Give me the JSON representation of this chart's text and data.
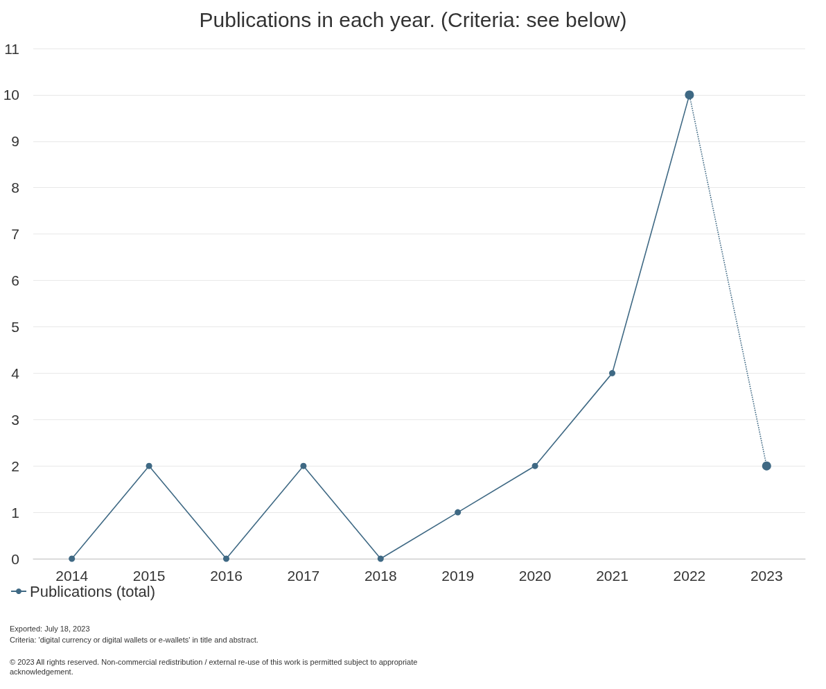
{
  "chart_data": {
    "type": "line",
    "title": "Publications in each year. (Criteria: see below)",
    "categories": [
      "2014",
      "2015",
      "2016",
      "2017",
      "2018",
      "2019",
      "2020",
      "2021",
      "2022",
      "2023"
    ],
    "series": [
      {
        "name": "Publications (total)",
        "color": "#3f6984",
        "values": [
          0,
          2,
          0,
          2,
          0,
          1,
          2,
          4,
          10,
          null
        ],
        "line_style": "solid"
      },
      {
        "color": "#3f6984",
        "values": [
          null,
          null,
          null,
          null,
          null,
          null,
          null,
          null,
          10,
          2
        ],
        "line_style": "dotted"
      }
    ],
    "ylim": [
      0,
      11
    ],
    "yticks": [
      0,
      1,
      2,
      3,
      4,
      5,
      6,
      7,
      8,
      9,
      10,
      11
    ],
    "grid": "y",
    "legend": "bottom left",
    "marker": "circle",
    "annotations": [
      "Exported: July 18, 2023",
      "Criteria: 'digital currency or digital wallets or e-wallets' in title and abstract.",
      "© 2023 All rights reserved. Non-commercial redistribution / external re-use of this work is permitted subject to appropriate acknowledgement."
    ]
  }
}
